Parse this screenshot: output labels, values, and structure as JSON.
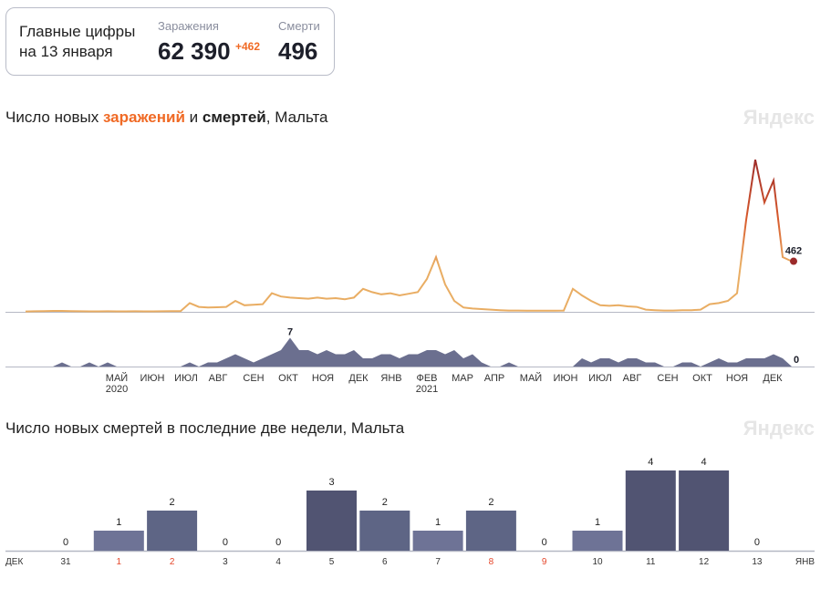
{
  "summary": {
    "title_line1": "Главные цифры",
    "title_line2": "на 13 января",
    "infections_label": "Заражения",
    "infections_value": "62 390",
    "infections_delta": "+462",
    "deaths_label": "Смерти",
    "deaths_value": "496"
  },
  "chart1": {
    "title_prefix": "Число новых ",
    "title_infections": "заражений",
    "title_mid": " и ",
    "title_deaths": "смертей",
    "title_suffix": ", Мальта",
    "logo": "Яндекс"
  },
  "chart2": {
    "title": "Число новых смертей в последние две недели, Мальта",
    "logo": "Яндекс"
  },
  "colors": {
    "line_low": "#e9ad63",
    "line_high": "#9b2a2a",
    "deaths_area": "#6b6f8f",
    "bar1": "#6e7396",
    "bar2": "#5e6585",
    "bar3": "#515472",
    "weekend": "#e5472b"
  },
  "chart_data": [
    {
      "type": "line",
      "title": "Число новых заражений и смертей, Мальта",
      "series": [
        {
          "name": "заражения",
          "values": [
            3,
            5,
            6,
            8,
            8,
            6,
            5,
            4,
            4,
            5,
            4,
            4,
            5,
            4,
            4,
            5,
            6,
            7,
            80,
            45,
            40,
            42,
            45,
            100,
            60,
            65,
            70,
            170,
            140,
            130,
            125,
            120,
            130,
            120,
            125,
            115,
            130,
            210,
            180,
            160,
            170,
            150,
            165,
            180,
            300,
            500,
            250,
            100,
            40,
            30,
            25,
            20,
            15,
            12,
            12,
            10,
            10,
            10,
            10,
            12,
            210,
            150,
            100,
            60,
            55,
            60,
            50,
            45,
            20,
            15,
            12,
            12,
            15,
            15,
            20,
            70,
            80,
            100,
            170,
            840,
            1390,
            1000,
            1200,
            500,
            462
          ],
          "last_label": "462"
        },
        {
          "name": "смерти",
          "values": [
            0,
            0,
            0,
            0,
            1,
            0,
            0,
            1,
            0,
            1,
            0,
            0,
            0,
            0,
            0,
            0,
            0,
            0,
            1,
            0,
            1,
            1,
            2,
            3,
            2,
            1,
            2,
            3,
            4,
            7,
            4,
            4,
            3,
            4,
            3,
            3,
            4,
            2,
            2,
            3,
            3,
            2,
            3,
            3,
            4,
            4,
            3,
            4,
            2,
            3,
            1,
            0,
            0,
            1,
            0,
            0,
            0,
            0,
            0,
            0,
            0,
            2,
            1,
            2,
            2,
            1,
            2,
            2,
            1,
            1,
            0,
            0,
            1,
            1,
            0,
            1,
            2,
            1,
            1,
            2,
            2,
            2,
            3,
            2,
            0
          ],
          "max_label": "7",
          "last_label": "0"
        }
      ],
      "x_ticks": [
        {
          "label": "МАЙ",
          "year": "2020"
        },
        {
          "label": "ИЮН"
        },
        {
          "label": "ИЮЛ"
        },
        {
          "label": "АВГ"
        },
        {
          "label": "СЕН"
        },
        {
          "label": "ОКТ"
        },
        {
          "label": "НОЯ"
        },
        {
          "label": "ДЕК"
        },
        {
          "label": "ЯНВ"
        },
        {
          "label": "ФЕВ",
          "year": "2021"
        },
        {
          "label": "МАР"
        },
        {
          "label": "АПР"
        },
        {
          "label": "МАЙ"
        },
        {
          "label": "ИЮН"
        },
        {
          "label": "ИЮЛ"
        },
        {
          "label": "АВГ"
        },
        {
          "label": "СЕН"
        },
        {
          "label": "ОКТ"
        },
        {
          "label": "НОЯ"
        },
        {
          "label": "ДЕК"
        }
      ]
    },
    {
      "type": "bar",
      "title": "Число новых смертей в последние две недели, Мальта",
      "start_label": "ДЕК",
      "end_label": "ЯНВ",
      "categories": [
        "31",
        "1",
        "2",
        "3",
        "4",
        "5",
        "6",
        "7",
        "8",
        "9",
        "10",
        "11",
        "12",
        "13"
      ],
      "values": [
        0,
        1,
        2,
        0,
        0,
        3,
        2,
        1,
        2,
        0,
        1,
        4,
        4,
        0
      ],
      "weekend": [
        false,
        true,
        true,
        false,
        false,
        false,
        false,
        false,
        true,
        true,
        false,
        false,
        false,
        false
      ],
      "ylim": [
        0,
        4
      ]
    }
  ]
}
